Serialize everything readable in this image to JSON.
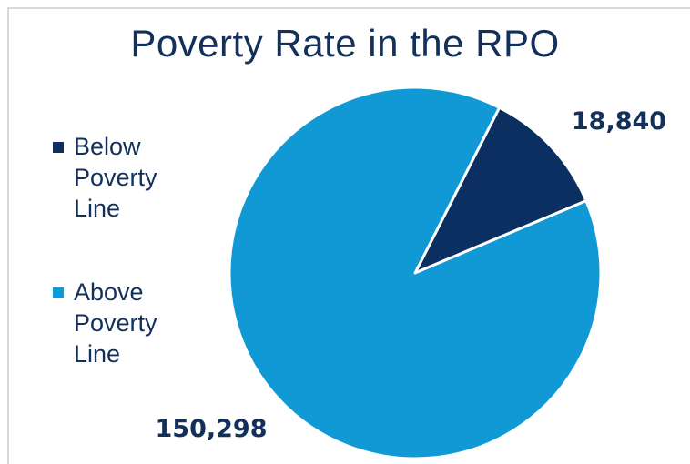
{
  "chart_data": {
    "type": "pie",
    "title": "Poverty Rate in the RPO",
    "categories": [
      "Below Poverty Line",
      "Above Poverty Line"
    ],
    "values": [
      18840,
      150298
    ],
    "value_labels": [
      "18,840",
      "150,298"
    ],
    "colors": [
      "#0b2f60",
      "#1199d6"
    ],
    "legend_position": "left",
    "start_angle_deg": 27
  }
}
